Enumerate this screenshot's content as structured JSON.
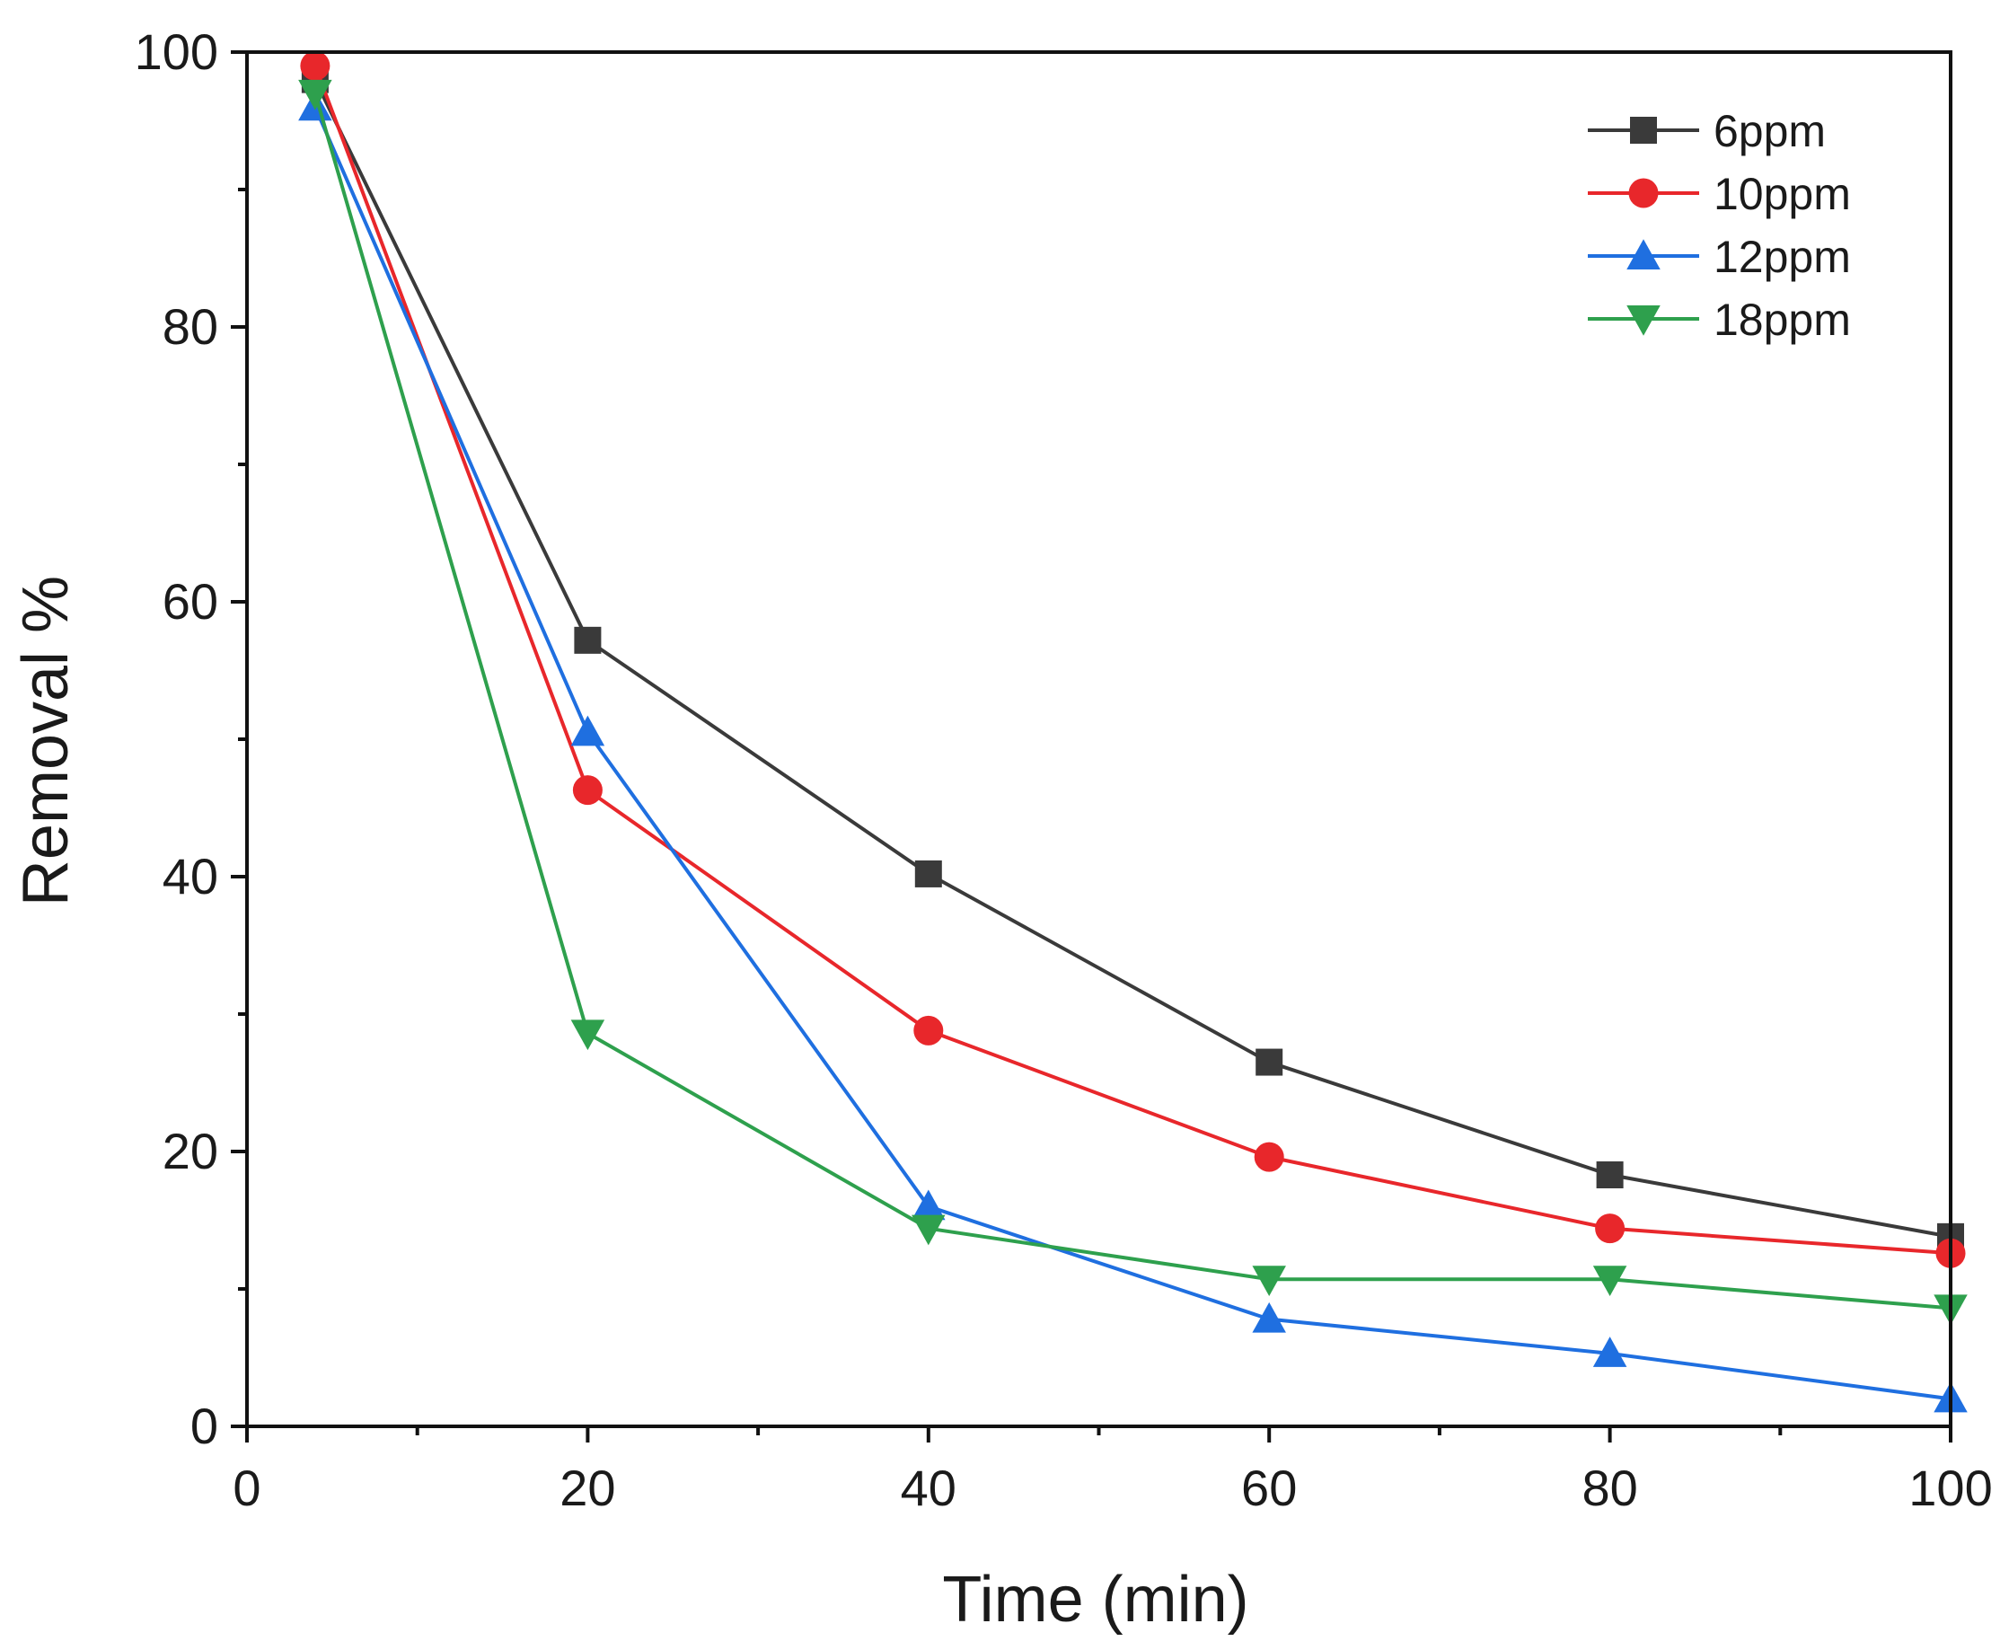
{
  "chart_data": {
    "type": "line",
    "title": "",
    "xlabel": "Time (min)",
    "ylabel": "Removal %",
    "xlim": [
      0,
      100
    ],
    "ylim": [
      0,
      100
    ],
    "x_ticks": [
      0,
      20,
      40,
      60,
      80,
      100
    ],
    "y_ticks": [
      0,
      20,
      40,
      60,
      80,
      100
    ],
    "x_tick_labels": [
      "0",
      "20",
      "40",
      "60",
      "80",
      "100"
    ],
    "y_tick_labels": [
      "0",
      "20",
      "40",
      "60",
      "80",
      "100"
    ],
    "grid": false,
    "legend_position": "top-right",
    "x": [
      4,
      20,
      40,
      60,
      80,
      100
    ],
    "series": [
      {
        "name": "6ppm",
        "color": "#3a3a3a",
        "marker": "square",
        "values": [
          98,
          57.2,
          40.2,
          26.5,
          18.3,
          13.8
        ]
      },
      {
        "name": "10ppm",
        "color": "#e8272b",
        "marker": "circle",
        "values": [
          99,
          46.3,
          28.8,
          19.6,
          14.4,
          12.6
        ]
      },
      {
        "name": "12ppm",
        "color": "#1f6fe0",
        "marker": "triangle-up",
        "values": [
          96,
          50.5,
          16,
          7.8,
          5.3,
          2
        ]
      },
      {
        "name": "18ppm",
        "color": "#2ea04d",
        "marker": "triangle-down",
        "values": [
          97,
          28.6,
          14.4,
          10.7,
          10.7,
          8.6
        ]
      }
    ]
  }
}
